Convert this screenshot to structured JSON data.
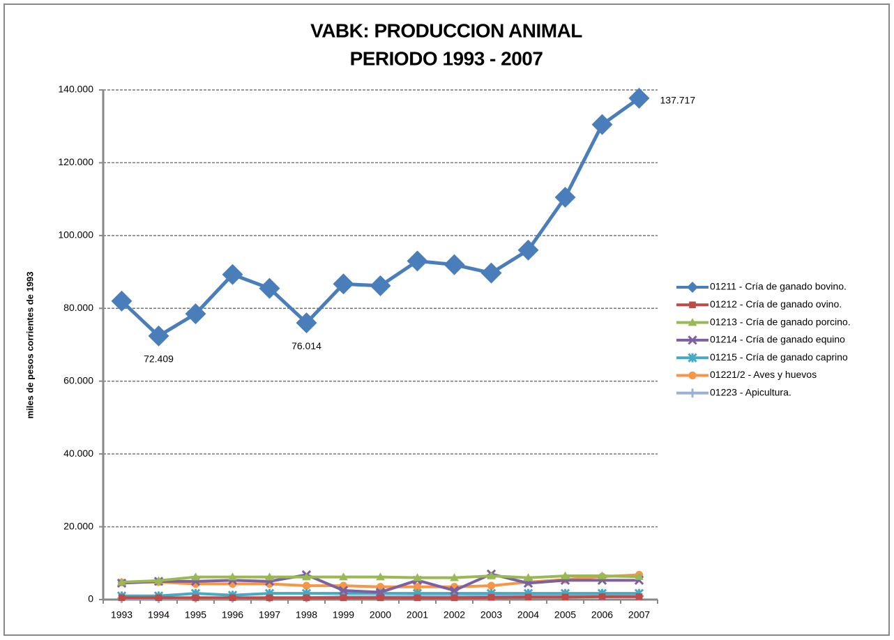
{
  "chart_data": {
    "type": "line",
    "title": "VABK: PRODUCCION ANIMAL",
    "subtitle": "PERIODO 1993 - 2007",
    "y_label": "miles de pesos corrientes de 1993",
    "categories": [
      "1993",
      "1994",
      "1995",
      "1996",
      "1997",
      "1998",
      "1999",
      "2000",
      "2001",
      "2002",
      "2003",
      "2004",
      "2005",
      "2006",
      "2007"
    ],
    "ylim": [
      0,
      140000
    ],
    "yticks": [
      0,
      {
        "value": 20000,
        "label": "20.000"
      },
      {
        "value": 40000,
        "label": "40.000"
      },
      {
        "value": 60000,
        "label": "60.000"
      },
      {
        "value": 80000,
        "label": "80.000"
      },
      {
        "value": 100000,
        "label": "100.000"
      },
      {
        "value": 120000,
        "label": "120.000"
      },
      {
        "value": 140000,
        "label": "140.000"
      }
    ],
    "grid": true,
    "legend": "right",
    "series": [
      {
        "name": "01211 - Cría de ganado bovino.",
        "color": "#4a7ebb",
        "marker": "diamond",
        "values": [
          82000,
          72409,
          78500,
          89300,
          85500,
          76014,
          86700,
          86200,
          93000,
          92000,
          89700,
          96000,
          110500,
          130500,
          137717
        ],
        "value_labels": [
          null,
          "72.409",
          null,
          null,
          null,
          "76.014",
          null,
          null,
          null,
          null,
          null,
          null,
          null,
          null,
          "137.717"
        ]
      },
      {
        "name": "01212 - Cría de ganado ovino.",
        "color": "#be4b48",
        "marker": "square",
        "values": [
          500,
          500,
          500,
          500,
          500,
          500,
          500,
          500,
          500,
          500,
          600,
          700,
          700,
          800,
          800
        ]
      },
      {
        "name": "01213 - Cría de ganado porcino.",
        "color": "#98b954",
        "marker": "triangle",
        "values": [
          4800,
          5200,
          6200,
          6200,
          6200,
          6200,
          6200,
          6200,
          6000,
          6000,
          6500,
          6000,
          6500,
          6500,
          6300
        ]
      },
      {
        "name": "01214 - Cría de ganado equino",
        "color": "#7d60a0",
        "marker": "x",
        "values": [
          4500,
          5000,
          5000,
          5300,
          5000,
          6800,
          2500,
          2000,
          5300,
          2500,
          7000,
          4500,
          5300,
          5300,
          5300
        ]
      },
      {
        "name": "01215 - Cría de ganado caprino",
        "color": "#46aac5",
        "marker": "star",
        "values": [
          1000,
          1000,
          1700,
          1200,
          1700,
          1700,
          1700,
          1700,
          1700,
          1700,
          1700,
          1700,
          1700,
          1700,
          1700
        ]
      },
      {
        "name": "01221/2 - Aves y huevos",
        "color": "#f79646",
        "marker": "circle",
        "values": [
          4700,
          4800,
          4300,
          4300,
          4300,
          3800,
          3800,
          3500,
          3500,
          3500,
          3800,
          4800,
          5500,
          6300,
          6800
        ]
      },
      {
        "name": "01223 - Apicultura.",
        "color": "#9bb1d6",
        "marker": "plus",
        "values": [
          300,
          300,
          400,
          400,
          500,
          500,
          800,
          800,
          900,
          900,
          1000,
          1000,
          1000,
          1000,
          1000
        ]
      }
    ]
  }
}
